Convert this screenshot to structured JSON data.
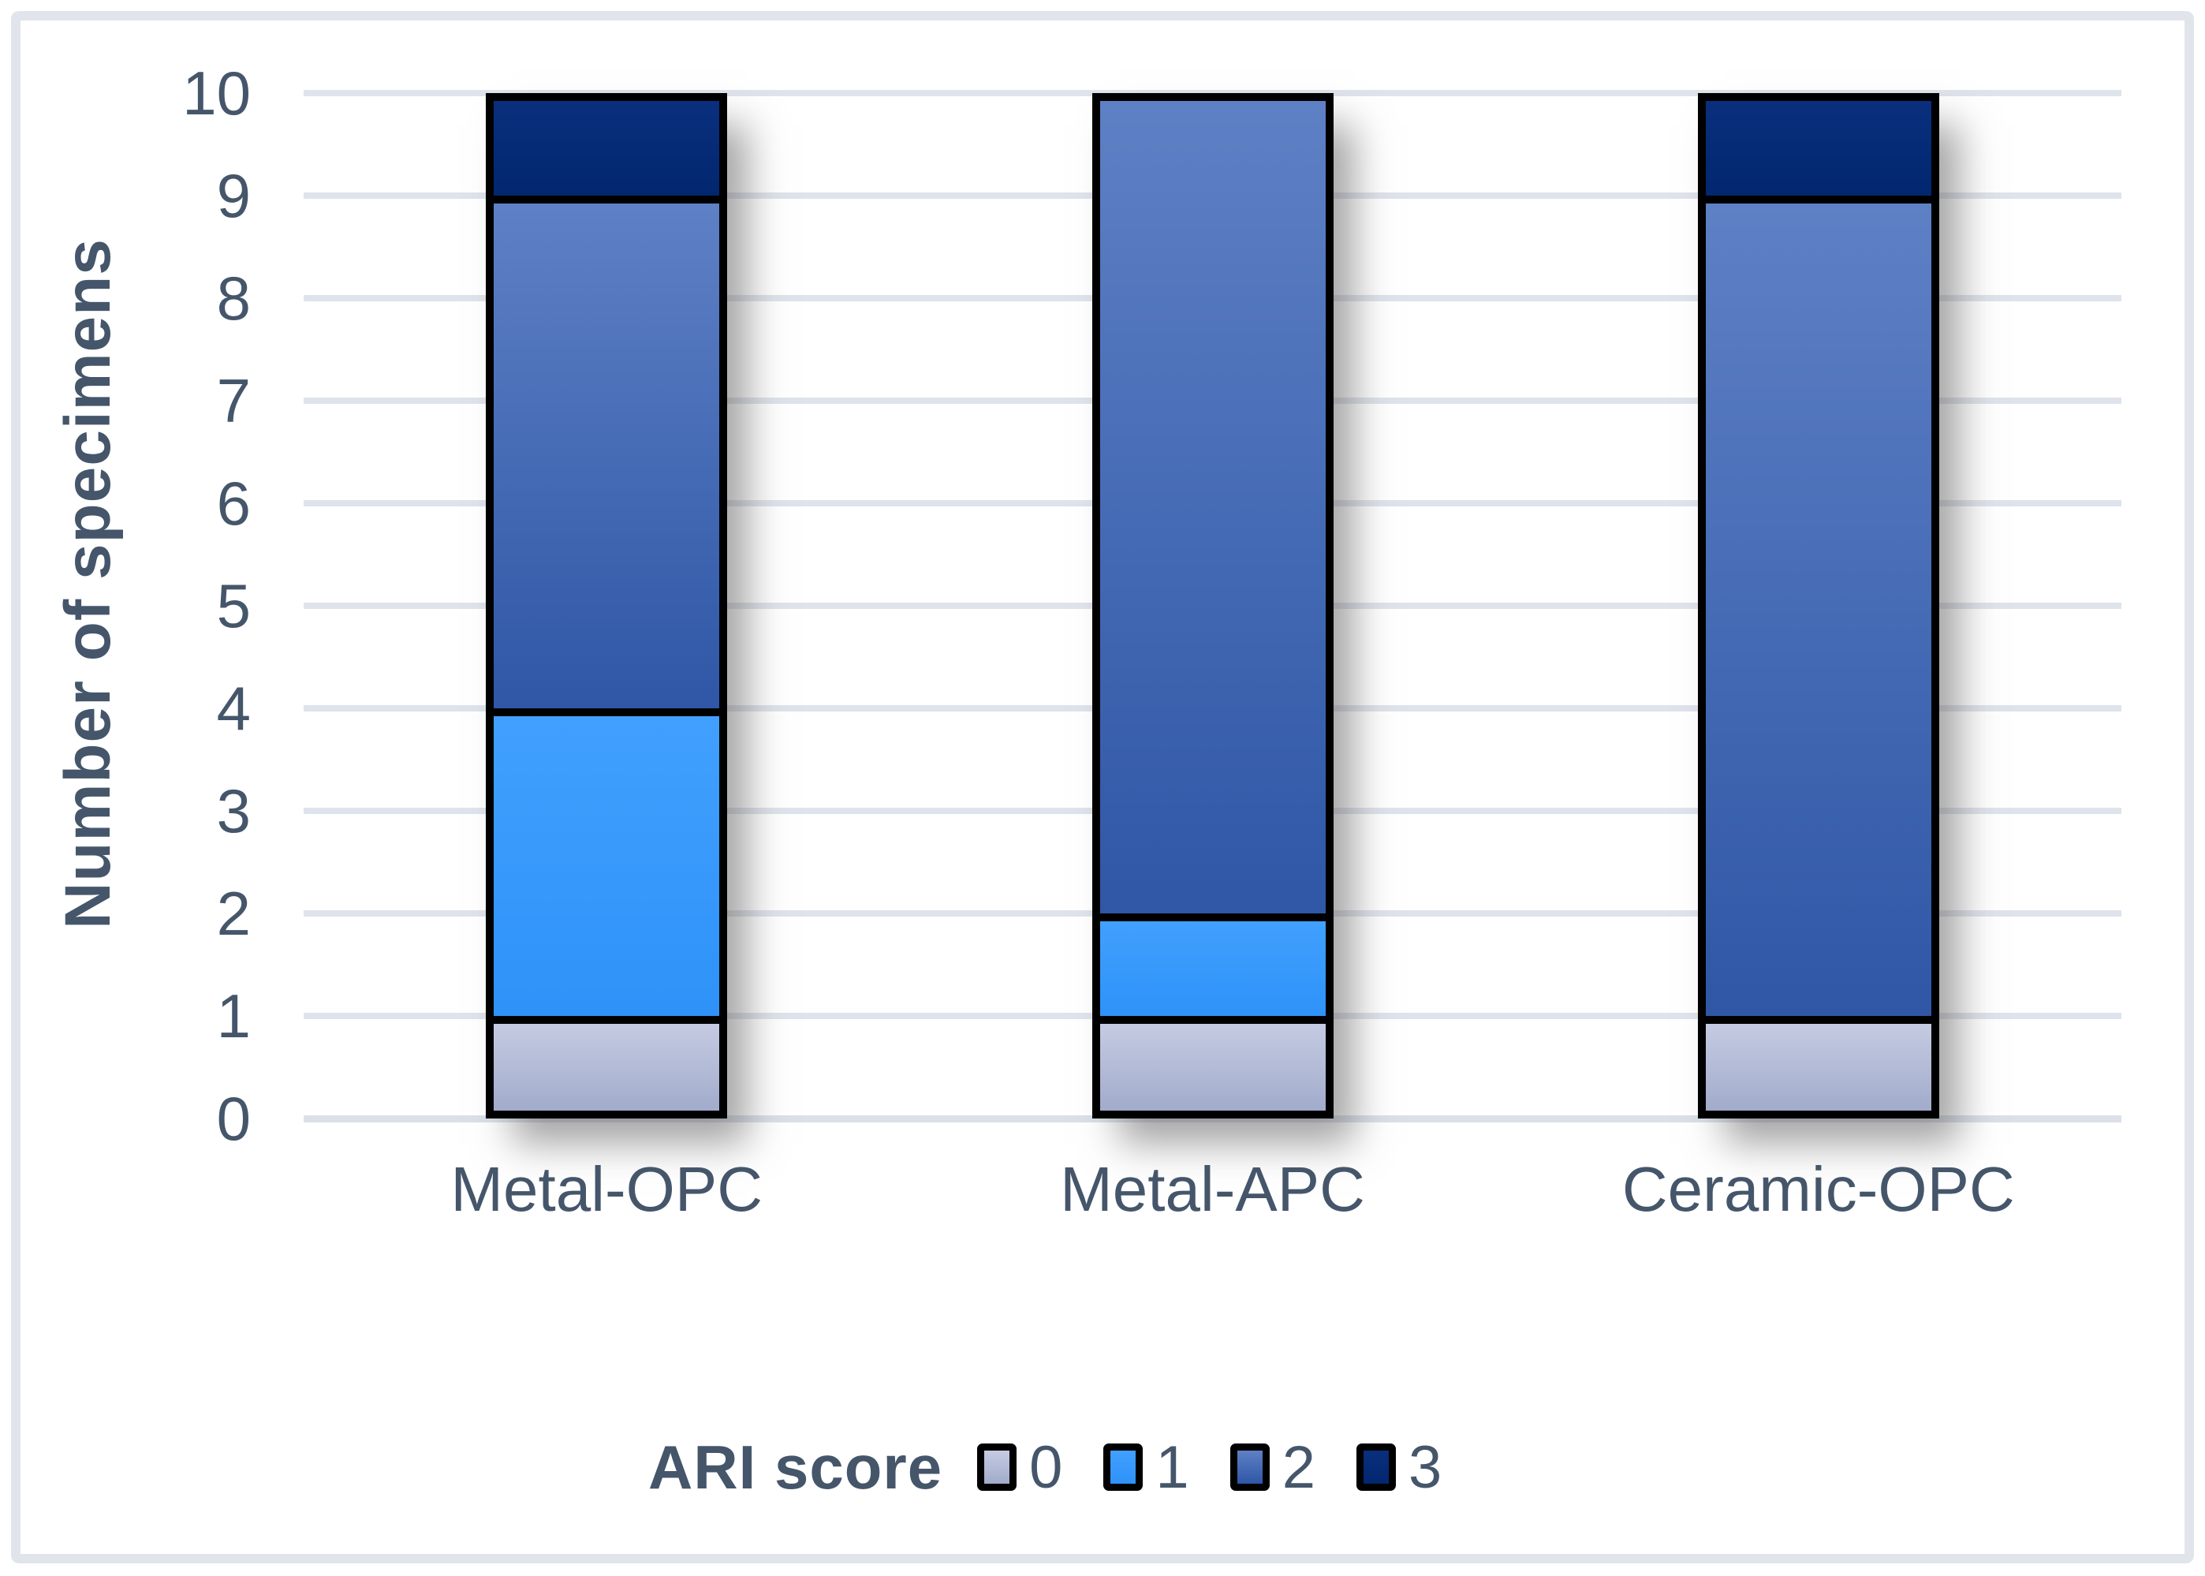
{
  "chart_data": {
    "type": "bar",
    "stacked": true,
    "categories": [
      "Metal-OPC",
      "Metal-APC",
      "Ceramic-OPC"
    ],
    "series": [
      {
        "name": "0",
        "values": [
          1,
          1,
          1
        ],
        "color_top": "#C5CBE2",
        "color_bottom": "#A1ABCB"
      },
      {
        "name": "1",
        "values": [
          3,
          1,
          0
        ],
        "color_top": "#41A0FE",
        "color_bottom": "#2E92F8"
      },
      {
        "name": "2",
        "values": [
          5,
          8,
          8
        ],
        "color_top": "#5E80C5",
        "color_bottom": "#2F57A6"
      },
      {
        "name": "3",
        "values": [
          1,
          0,
          1
        ],
        "color_top": "#0A2F7D",
        "color_bottom": "#02276F"
      }
    ],
    "xlabel": "",
    "ylabel": "Number of specimens",
    "ylim": [
      0,
      10
    ],
    "ytick_step": 1,
    "ytick_labels": [
      "0",
      "1",
      "2",
      "3",
      "4",
      "5",
      "6",
      "7",
      "8",
      "9",
      "10"
    ],
    "grid": "horizontal",
    "legend_title": "ARI score",
    "legend_position": "bottom",
    "bar_outline_color": "#000000",
    "text_color": "#45566B",
    "gridline_color": "#DFE3EB",
    "frame_border_color": "#E1E5EB"
  }
}
